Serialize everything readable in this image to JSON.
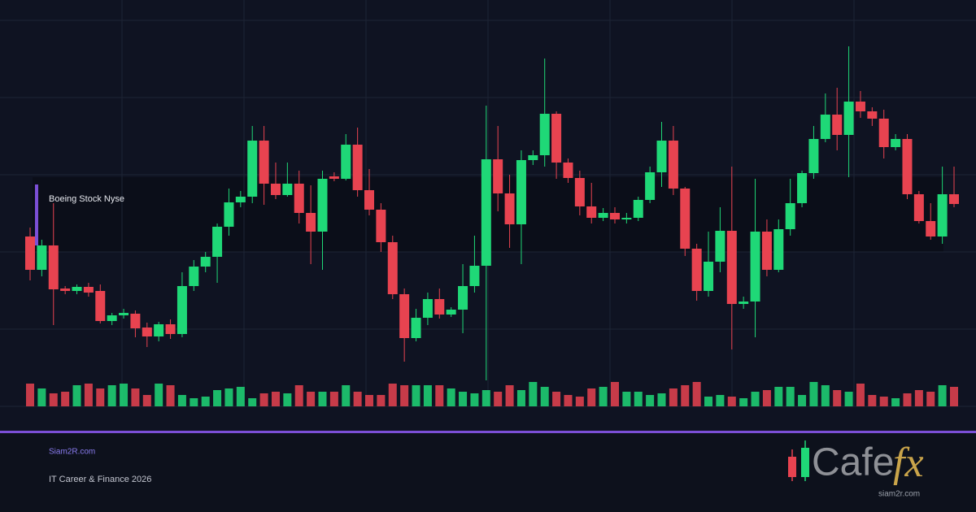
{
  "chart_data": {
    "type": "candlestick",
    "title": "Boeing Stock Nyse",
    "footer_site": "Siam2R.com",
    "footer_caption": "IT Career & Finance 2026",
    "logo_word": "Cafe",
    "logo_accent": "fx",
    "logo_site": "siam2r.com",
    "up_color": "#1fd877",
    "down_color": "#e84350",
    "grid": true,
    "ylim": [
      0,
      475
    ],
    "yticks": [
      0,
      95,
      190,
      285,
      380,
      475
    ],
    "vlim": [
      0,
      100
    ],
    "open": [
      209,
      168,
      198,
      145,
      142,
      147,
      142,
      105,
      112,
      114,
      97,
      86,
      101,
      89,
      148,
      172,
      184,
      221,
      251,
      258,
      327,
      274,
      260,
      274,
      238,
      215,
      283,
      280,
      322,
      266,
      242,
      202,
      138,
      84,
      109,
      132,
      113,
      119,
      148,
      173,
      304,
      262,
      224,
      303,
      309,
      360,
      300,
      281,
      246,
      232,
      238,
      230,
      232,
      254,
      288,
      327,
      268,
      194,
      142,
      178,
      216,
      126,
      129,
      215,
      168,
      218,
      250,
      287,
      329,
      359,
      334,
      375,
      363,
      354,
      319,
      329,
      261,
      228,
      209,
      261
    ],
    "close": [
      168,
      198,
      144,
      142,
      147,
      140,
      105,
      112,
      115,
      96,
      86,
      101,
      89,
      148,
      172,
      184,
      221,
      251,
      258,
      327,
      274,
      260,
      274,
      238,
      215,
      280,
      280,
      322,
      266,
      242,
      202,
      138,
      84,
      109,
      132,
      113,
      119,
      148,
      173,
      304,
      262,
      224,
      303,
      309,
      360,
      300,
      281,
      246,
      232,
      238,
      230,
      232,
      254,
      288,
      327,
      268,
      194,
      142,
      178,
      216,
      126,
      129,
      215,
      168,
      218,
      250,
      287,
      329,
      359,
      334,
      375,
      363,
      354,
      319,
      329,
      261,
      228,
      209,
      261,
      249
    ],
    "high": [
      220,
      205,
      250,
      148,
      150,
      152,
      150,
      115,
      120,
      118,
      103,
      104,
      107,
      165,
      180,
      190,
      225,
      268,
      265,
      345,
      345,
      300,
      300,
      290,
      272,
      290,
      288,
      335,
      343,
      292,
      250,
      210,
      145,
      120,
      140,
      145,
      122,
      175,
      210,
      370,
      345,
      285,
      315,
      315,
      428,
      363,
      305,
      290,
      275,
      244,
      245,
      238,
      258,
      295,
      350,
      345,
      270,
      200,
      215,
      245,
      295,
      135,
      280,
      230,
      230,
      280,
      290,
      345,
      385,
      392,
      443,
      388,
      368,
      365,
      335,
      335,
      265,
      250,
      295,
      295
    ],
    "low": [
      155,
      160,
      100,
      138,
      138,
      135,
      102,
      100,
      108,
      85,
      73,
      80,
      83,
      85,
      142,
      165,
      152,
      210,
      245,
      250,
      248,
      255,
      258,
      225,
      175,
      168,
      277,
      278,
      258,
      235,
      190,
      132,
      55,
      80,
      100,
      108,
      110,
      90,
      140,
      32,
      240,
      195,
      175,
      297,
      295,
      280,
      275,
      235,
      225,
      228,
      225,
      225,
      228,
      250,
      270,
      260,
      185,
      130,
      135,
      165,
      70,
      120,
      85,
      160,
      165,
      210,
      245,
      280,
      325,
      315,
      282,
      355,
      345,
      305,
      315,
      255,
      225,
      205,
      200,
      245
    ],
    "volume": [
      28,
      22,
      16,
      18,
      26,
      28,
      22,
      26,
      28,
      22,
      14,
      28,
      26,
      14,
      10,
      12,
      20,
      22,
      24,
      10,
      16,
      18,
      16,
      26,
      18,
      18,
      18,
      26,
      18,
      14,
      14,
      28,
      26,
      26,
      26,
      26,
      22,
      18,
      16,
      20,
      18,
      26,
      20,
      30,
      24,
      18,
      14,
      12,
      22,
      24,
      30,
      18,
      18,
      14,
      16,
      22,
      26,
      30,
      12,
      14,
      12,
      10,
      18,
      20,
      24,
      24,
      14,
      30,
      26,
      20,
      18,
      28,
      14,
      12,
      10,
      16,
      20,
      18,
      26,
      24
    ]
  }
}
